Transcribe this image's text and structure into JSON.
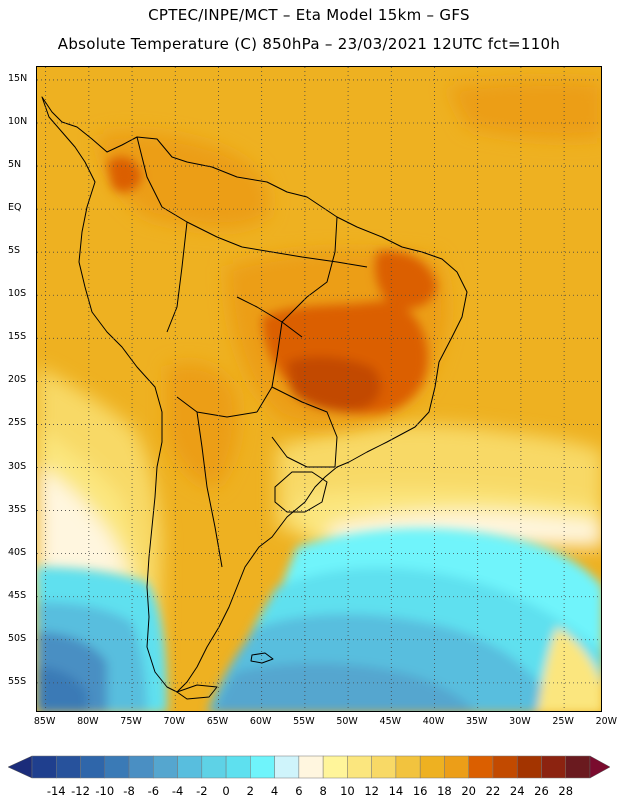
{
  "header": {
    "line1": "CPTEC/INPE/MCT –  Eta Model 15km – GFS",
    "line2": "Absolute Temperature (C) 850hPa – 23/03/2021 12UTC fct=110h"
  },
  "map": {
    "region": "South America",
    "lat_labels": [
      "15N",
      "10N",
      "5N",
      "EQ",
      "5S",
      "10S",
      "15S",
      "20S",
      "25S",
      "30S",
      "35S",
      "40S",
      "45S",
      "50S",
      "55S"
    ],
    "lat_values": [
      15,
      10,
      5,
      0,
      -5,
      -10,
      -15,
      -20,
      -25,
      -30,
      -35,
      -40,
      -45,
      -50,
      -55
    ],
    "lon_labels": [
      "85W",
      "80W",
      "75W",
      "70W",
      "65W",
      "60W",
      "55W",
      "50W",
      "45W",
      "40W",
      "35W",
      "30W",
      "25W",
      "20W"
    ],
    "lon_values": [
      -85,
      -80,
      -75,
      -70,
      -65,
      -60,
      -55,
      -50,
      -45,
      -40,
      -35,
      -30,
      -25,
      -20
    ],
    "lat_range": [
      -58.5,
      16.5
    ],
    "lon_range": [
      -86,
      -20.5
    ],
    "gridlines": "dotted"
  },
  "colorbar": {
    "labels": [
      "-14",
      "-12",
      "-10",
      "-8",
      "-6",
      "-4",
      "-2",
      "0",
      "2",
      "4",
      "6",
      "8",
      "10",
      "12",
      "14",
      "16",
      "18",
      "20",
      "22",
      "24",
      "26",
      "28"
    ],
    "colors": [
      "#1f3f8e",
      "#27529c",
      "#2f66aa",
      "#3a7ab6",
      "#4a8fc3",
      "#55a6cf",
      "#58bede",
      "#5ed2e6",
      "#5ee0ef",
      "#6ff4fb",
      "#cff4fb",
      "#fff6df",
      "#fff59a",
      "#fbe67e",
      "#f8d966",
      "#f2c33e",
      "#eeb121",
      "#ec9e18",
      "#db5f00",
      "#c24a00",
      "#a33400",
      "#8c2310",
      "#6a1a1f"
    ],
    "arrow_left_color": "#1b2c7a",
    "arrow_right_color": "#7a0b2e"
  }
}
